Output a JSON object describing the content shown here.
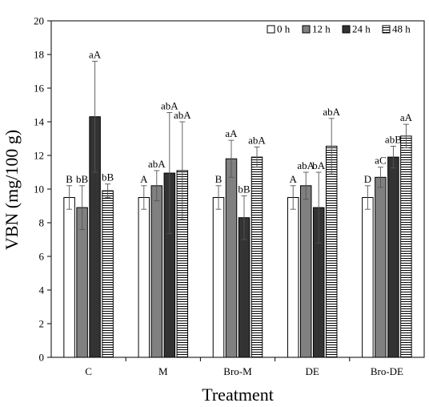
{
  "chart_data": {
    "type": "bar",
    "xlabel": "Treatment",
    "ylabel": "VBN (mg/100 g)",
    "ylim": [
      0,
      20
    ],
    "yticks": [
      0,
      2,
      4,
      6,
      8,
      10,
      12,
      14,
      16,
      18,
      20
    ],
    "grid": false,
    "legend_position": "top-right",
    "categories": [
      "C",
      "M",
      "Bro-M",
      "DE",
      "Bro-DE"
    ],
    "series": [
      {
        "name": "0 h",
        "fill": "#ffffff",
        "pattern": "solid",
        "values": [
          9.5,
          9.5,
          9.5,
          9.5,
          9.5
        ],
        "errors": [
          0.7,
          0.7,
          0.7,
          0.7,
          0.7
        ],
        "labels": [
          "B",
          "A",
          "B",
          "A",
          "D"
        ]
      },
      {
        "name": "12 h",
        "fill": "#808080",
        "pattern": "solid",
        "values": [
          8.9,
          10.2,
          11.8,
          10.2,
          10.7
        ],
        "errors": [
          1.3,
          0.9,
          1.1,
          0.8,
          0.6
        ],
        "labels": [
          "bB",
          "abA",
          "aA",
          "abA",
          "aC"
        ]
      },
      {
        "name": "24 h",
        "fill": "#333333",
        "pattern": "solid",
        "values": [
          14.3,
          10.95,
          8.3,
          8.9,
          11.9
        ],
        "errors": [
          3.3,
          3.6,
          1.3,
          2.1,
          0.65
        ],
        "labels": [
          "aA",
          "abA",
          "bB",
          "bA",
          "abB"
        ]
      },
      {
        "name": "48 h",
        "fill": "#ffffff",
        "pattern": "horizontal-lines",
        "values": [
          9.9,
          11.1,
          11.9,
          12.55,
          13.15
        ],
        "errors": [
          0.4,
          2.9,
          0.6,
          1.65,
          0.7
        ],
        "labels": [
          "bB",
          "abA",
          "abA",
          "abA",
          "aA"
        ]
      }
    ]
  }
}
